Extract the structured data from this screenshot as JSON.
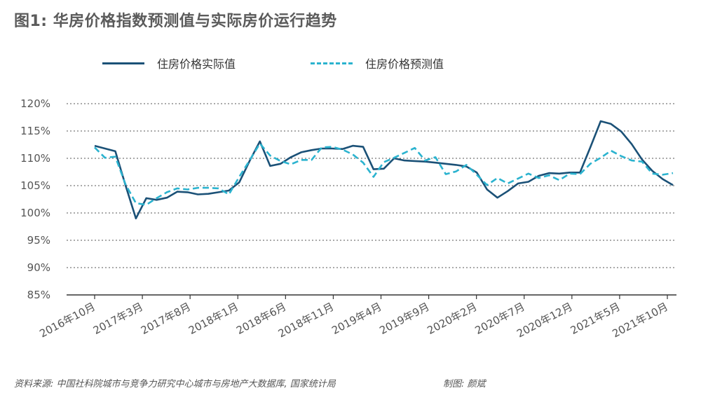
{
  "title": "图1: 华房价格指数预测值与实际房价运行趋势",
  "source": "资料来源: 中国社科院城市与竞争力研究中心城市与房地产大数据库, 国家统计局",
  "credit": "制图: 颜斌",
  "colors": {
    "actual": "#1b5177",
    "predicted": "#2bb3cf",
    "grid": "#555555",
    "axis": "#333333"
  },
  "chart_data": {
    "type": "line",
    "title": "图1: 华房价格指数预测值与实际房价运行趋势",
    "xlabel": "",
    "ylabel": "",
    "ylim": [
      85,
      120
    ],
    "yticks": [
      "120%",
      "115%",
      "110%",
      "105%",
      "100%",
      "95%",
      "90%",
      "85%"
    ],
    "grid": true,
    "legend": "top-left",
    "x_tick_labels": [
      "2016年10月",
      "2017年3月",
      "2017年8月",
      "2018年1月",
      "2018年6月",
      "2018年11月",
      "2019年4月",
      "2019年9月",
      "2020年2月",
      "2020年7月",
      "2020年12月",
      "2021年5月",
      "2021年10月"
    ],
    "series": [
      {
        "name": "住房价格实际值",
        "style": "solid",
        "values": [
          112.3,
          111.8,
          111.3,
          105.0,
          99.0,
          102.7,
          102.4,
          102.8,
          103.9,
          103.8,
          103.4,
          103.5,
          103.8,
          104.1,
          105.6,
          109.5,
          113.1,
          108.6,
          109.0,
          110.2,
          111.1,
          111.5,
          111.8,
          111.8,
          111.7,
          112.3,
          112.1,
          108.0,
          108.1,
          110.0,
          109.6,
          109.5,
          109.4,
          109.2,
          109.0,
          108.8,
          108.5,
          107.4,
          104.3,
          102.8,
          104.0,
          105.4,
          105.7,
          106.8,
          107.3,
          107.2,
          107.4,
          107.4,
          112.0,
          116.8,
          116.3,
          114.9,
          112.6,
          109.8,
          107.7,
          106.2,
          105.1
        ]
      },
      {
        "name": "住房价格预测值",
        "style": "dashed",
        "values": [
          112.0,
          110.1,
          110.3,
          105.2,
          101.8,
          101.5,
          102.7,
          103.8,
          104.5,
          104.3,
          104.6,
          104.6,
          104.5,
          103.4,
          106.6,
          109.6,
          112.7,
          110.5,
          109.5,
          108.9,
          109.7,
          109.7,
          112.0,
          112.1,
          111.6,
          110.7,
          109.2,
          106.6,
          109.3,
          110.1,
          111.0,
          111.9,
          109.6,
          110.2,
          107.1,
          107.6,
          108.8,
          107.0,
          105.1,
          106.4,
          105.4,
          106.3,
          107.2,
          106.4,
          106.9,
          106.0,
          107.2,
          107.1,
          109.0,
          110.1,
          111.4,
          110.4,
          109.6,
          109.4,
          107.2,
          107.0,
          107.3
        ]
      }
    ]
  },
  "legend_items": [
    {
      "label": "住房价格实际值"
    },
    {
      "label": "住房价格预测值"
    }
  ]
}
